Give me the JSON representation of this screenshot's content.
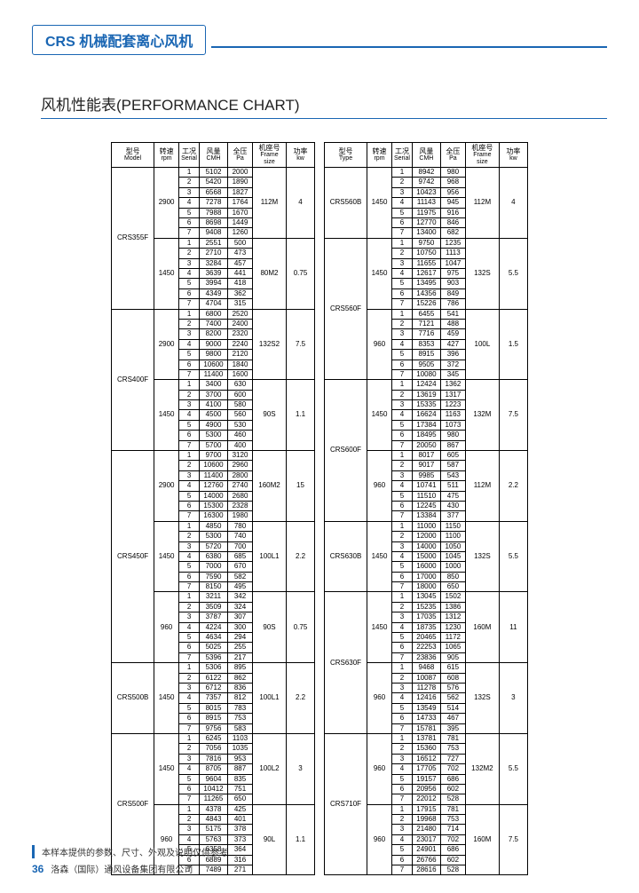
{
  "header": {
    "title": "CRS 机械配套离心风机"
  },
  "section_title": "风机性能表(PERFORMANCE CHART)",
  "columns_left": [
    {
      "cn": "型号",
      "en": "Model"
    },
    {
      "cn": "转速",
      "en": "rpm"
    },
    {
      "cn": "工况",
      "en": "Serial"
    },
    {
      "cn": "风量",
      "en": "CMH"
    },
    {
      "cn": "全压",
      "en": "Pa"
    },
    {
      "cn": "机座号",
      "en": "Frame size"
    },
    {
      "cn": "功率",
      "en": "kw"
    }
  ],
  "columns_right": [
    {
      "cn": "型号",
      "en": "Type"
    },
    {
      "cn": "转速",
      "en": "rpm"
    },
    {
      "cn": "工况",
      "en": "Serial"
    },
    {
      "cn": "风量",
      "en": "CMH"
    },
    {
      "cn": "全压",
      "en": "Pa"
    },
    {
      "cn": "机座号",
      "en": "Frame size"
    },
    {
      "cn": "功率",
      "en": "kw"
    }
  ],
  "left_table": [
    {
      "model": "CRS355F",
      "blocks": [
        {
          "rpm": "2900",
          "frame": "112M",
          "kw": "4",
          "rows": [
            [
              "5102",
              "2000"
            ],
            [
              "5420",
              "1890"
            ],
            [
              "6568",
              "1827"
            ],
            [
              "7278",
              "1764"
            ],
            [
              "7988",
              "1670"
            ],
            [
              "8698",
              "1449"
            ],
            [
              "9408",
              "1260"
            ]
          ]
        },
        {
          "rpm": "1450",
          "frame": "80M2",
          "kw": "0.75",
          "rows": [
            [
              "2551",
              "500"
            ],
            [
              "2710",
              "473"
            ],
            [
              "3284",
              "457"
            ],
            [
              "3639",
              "441"
            ],
            [
              "3994",
              "418"
            ],
            [
              "4349",
              "362"
            ],
            [
              "4704",
              "315"
            ]
          ]
        }
      ]
    },
    {
      "model": "CRS400F",
      "blocks": [
        {
          "rpm": "2900",
          "frame": "132S2",
          "kw": "7.5",
          "rows": [
            [
              "6800",
              "2520"
            ],
            [
              "7400",
              "2400"
            ],
            [
              "8200",
              "2320"
            ],
            [
              "9000",
              "2240"
            ],
            [
              "9800",
              "2120"
            ],
            [
              "10600",
              "1840"
            ],
            [
              "11400",
              "1600"
            ]
          ]
        },
        {
          "rpm": "1450",
          "frame": "90S",
          "kw": "1.1",
          "rows": [
            [
              "3400",
              "630"
            ],
            [
              "3700",
              "600"
            ],
            [
              "4100",
              "580"
            ],
            [
              "4500",
              "560"
            ],
            [
              "4900",
              "530"
            ],
            [
              "5300",
              "460"
            ],
            [
              "5700",
              "400"
            ]
          ]
        }
      ]
    },
    {
      "model": "CRS450F",
      "blocks": [
        {
          "rpm": "2900",
          "frame": "160M2",
          "kw": "15",
          "rows": [
            [
              "9700",
              "3120"
            ],
            [
              "10600",
              "2960"
            ],
            [
              "11400",
              "2800"
            ],
            [
              "12760",
              "2740"
            ],
            [
              "14000",
              "2680"
            ],
            [
              "15300",
              "2328"
            ],
            [
              "16300",
              "1980"
            ]
          ]
        },
        {
          "rpm": "1450",
          "frame": "100L1",
          "kw": "2.2",
          "rows": [
            [
              "4850",
              "780"
            ],
            [
              "5300",
              "740"
            ],
            [
              "5720",
              "700"
            ],
            [
              "6380",
              "685"
            ],
            [
              "7000",
              "670"
            ],
            [
              "7590",
              "582"
            ],
            [
              "8150",
              "495"
            ]
          ]
        },
        {
          "rpm": "960",
          "frame": "90S",
          "kw": "0.75",
          "rows": [
            [
              "3211",
              "342"
            ],
            [
              "3509",
              "324"
            ],
            [
              "3787",
              "307"
            ],
            [
              "4224",
              "300"
            ],
            [
              "4634",
              "294"
            ],
            [
              "5025",
              "255"
            ],
            [
              "5396",
              "217"
            ]
          ]
        }
      ]
    },
    {
      "model": "CRS500B",
      "blocks": [
        {
          "rpm": "1450",
          "frame": "100L1",
          "kw": "2.2",
          "rows": [
            [
              "5306",
              "895"
            ],
            [
              "6122",
              "862"
            ],
            [
              "6712",
              "836"
            ],
            [
              "7357",
              "812"
            ],
            [
              "8015",
              "783"
            ],
            [
              "8915",
              "753"
            ],
            [
              "9756",
              "583"
            ]
          ]
        }
      ]
    },
    {
      "model": "CRS500F",
      "blocks": [
        {
          "rpm": "1450",
          "frame": "100L2",
          "kw": "3",
          "rows": [
            [
              "6245",
              "1103"
            ],
            [
              "7056",
              "1035"
            ],
            [
              "7816",
              "953"
            ],
            [
              "8705",
              "887"
            ],
            [
              "9604",
              "835"
            ],
            [
              "10412",
              "751"
            ],
            [
              "11265",
              "650"
            ]
          ]
        },
        {
          "rpm": "960",
          "frame": "90L",
          "kw": "1.1",
          "rows": [
            [
              "4378",
              "425"
            ],
            [
              "4843",
              "401"
            ],
            [
              "5175",
              "378"
            ],
            [
              "5763",
              "373"
            ],
            [
              "6358",
              "364"
            ],
            [
              "6889",
              "316"
            ],
            [
              "7489",
              "271"
            ]
          ]
        }
      ]
    }
  ],
  "right_table": [
    {
      "model": "CRS560B",
      "blocks": [
        {
          "rpm": "1450",
          "frame": "112M",
          "kw": "4",
          "rows": [
            [
              "8942",
              "980"
            ],
            [
              "9742",
              "968"
            ],
            [
              "10423",
              "956"
            ],
            [
              "11143",
              "945"
            ],
            [
              "11975",
              "916"
            ],
            [
              "12770",
              "846"
            ],
            [
              "13400",
              "682"
            ]
          ]
        }
      ]
    },
    {
      "model": "CRS560F",
      "blocks": [
        {
          "rpm": "1450",
          "frame": "132S",
          "kw": "5.5",
          "rows": [
            [
              "9750",
              "1235"
            ],
            [
              "10750",
              "1113"
            ],
            [
              "11655",
              "1047"
            ],
            [
              "12617",
              "975"
            ],
            [
              "13495",
              "903"
            ],
            [
              "14356",
              "849"
            ],
            [
              "15226",
              "786"
            ]
          ]
        },
        {
          "rpm": "960",
          "frame": "100L",
          "kw": "1.5",
          "rows": [
            [
              "6455",
              "541"
            ],
            [
              "7121",
              "488"
            ],
            [
              "7716",
              "459"
            ],
            [
              "8353",
              "427"
            ],
            [
              "8915",
              "396"
            ],
            [
              "9505",
              "372"
            ],
            [
              "10080",
              "345"
            ]
          ]
        }
      ]
    },
    {
      "model": "CRS600F",
      "blocks": [
        {
          "rpm": "1450",
          "frame": "132M",
          "kw": "7.5",
          "rows": [
            [
              "12424",
              "1362"
            ],
            [
              "13619",
              "1317"
            ],
            [
              "15335",
              "1223"
            ],
            [
              "16624",
              "1163"
            ],
            [
              "17384",
              "1073"
            ],
            [
              "18495",
              "980"
            ],
            [
              "20050",
              "867"
            ]
          ]
        },
        {
          "rpm": "960",
          "frame": "112M",
          "kw": "2.2",
          "rows": [
            [
              "8017",
              "605"
            ],
            [
              "9017",
              "587"
            ],
            [
              "9985",
              "543"
            ],
            [
              "10741",
              "511"
            ],
            [
              "11510",
              "475"
            ],
            [
              "12245",
              "430"
            ],
            [
              "13384",
              "377"
            ]
          ]
        }
      ]
    },
    {
      "model": "CRS630B",
      "blocks": [
        {
          "rpm": "1450",
          "frame": "132S",
          "kw": "5.5",
          "rows": [
            [
              "11000",
              "1150"
            ],
            [
              "12000",
              "1100"
            ],
            [
              "14000",
              "1050"
            ],
            [
              "15000",
              "1045"
            ],
            [
              "16000",
              "1000"
            ],
            [
              "17000",
              "850"
            ],
            [
              "18000",
              "650"
            ]
          ]
        }
      ]
    },
    {
      "model": "CRS630F",
      "blocks": [
        {
          "rpm": "1450",
          "frame": "160M",
          "kw": "11",
          "rows": [
            [
              "13045",
              "1502"
            ],
            [
              "15235",
              "1386"
            ],
            [
              "17035",
              "1312"
            ],
            [
              "18735",
              "1230"
            ],
            [
              "20465",
              "1172"
            ],
            [
              "22253",
              "1065"
            ],
            [
              "23836",
              "905"
            ]
          ]
        },
        {
          "rpm": "960",
          "frame": "132S",
          "kw": "3",
          "rows": [
            [
              "9468",
              "615"
            ],
            [
              "10087",
              "608"
            ],
            [
              "11278",
              "576"
            ],
            [
              "12416",
              "562"
            ],
            [
              "13549",
              "514"
            ],
            [
              "14733",
              "467"
            ],
            [
              "15781",
              "395"
            ]
          ]
        }
      ]
    },
    {
      "model": "CRS710F",
      "blocks": [
        {
          "rpm": "960",
          "frame": "132M2",
          "kw": "5.5",
          "rows": [
            [
              "13781",
              "781"
            ],
            [
              "15360",
              "753"
            ],
            [
              "16512",
              "727"
            ],
            [
              "17705",
              "702"
            ],
            [
              "19157",
              "686"
            ],
            [
              "20956",
              "602"
            ],
            [
              "22012",
              "528"
            ]
          ]
        },
        {
          "rpm": "960",
          "frame": "160M",
          "kw": "7.5",
          "rows": [
            [
              "17915",
              "781"
            ],
            [
              "19968",
              "753"
            ],
            [
              "21480",
              "714"
            ],
            [
              "23017",
              "702"
            ],
            [
              "24901",
              "686"
            ],
            [
              "26766",
              "602"
            ],
            [
              "28616",
              "528"
            ]
          ]
        }
      ]
    }
  ],
  "footer": {
    "note": "本样本提供的参数、尺寸、外观及说明仅供参考",
    "page": "36",
    "company": "洛森（国际）通风设备集团有限公司"
  },
  "colors": {
    "brand": "#1a66b3",
    "text": "#222222",
    "border": "#000000",
    "bg": "#ffffff"
  }
}
